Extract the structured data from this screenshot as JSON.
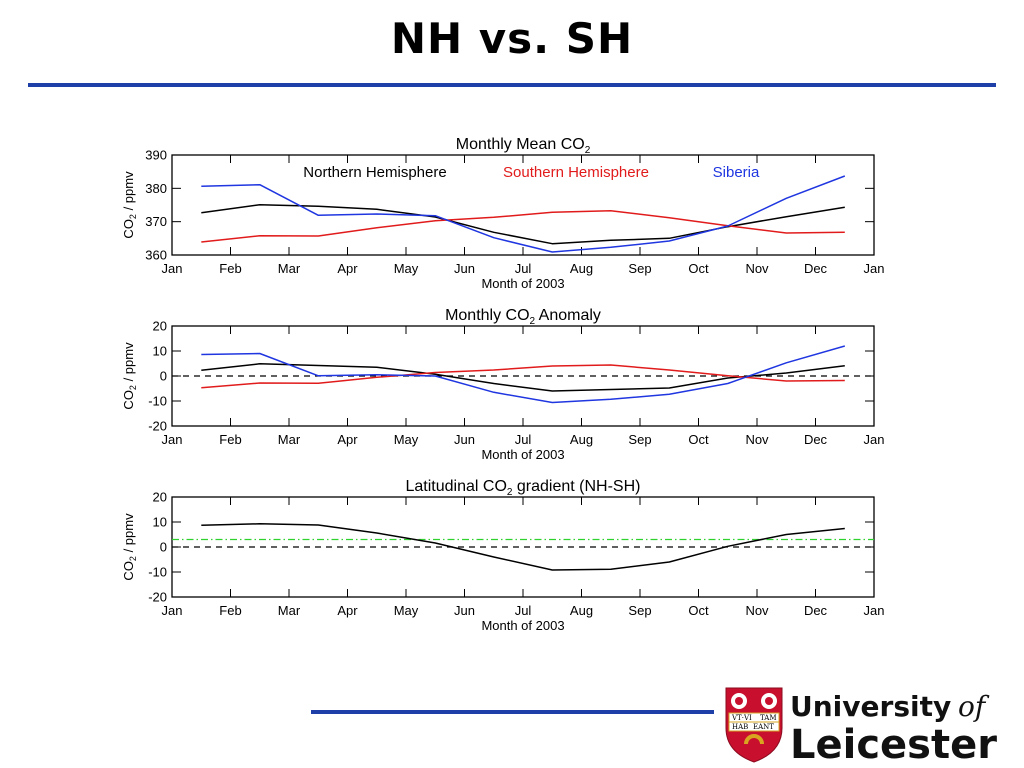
{
  "page": {
    "title": "NH vs. SH"
  },
  "colors": {
    "rule": "#1f3fa8",
    "nh": "#000000",
    "sh": "#e11b1b",
    "siberia": "#1f36e0",
    "reference": "#2ed12e",
    "shield": "#c8102e",
    "gold": "#d9a521"
  },
  "logo": {
    "line1": "University",
    "line1_suffix": "of",
    "line2": "Leicester",
    "motto_top": "VT·VI",
    "motto_top_right": "TAM",
    "motto_bottom": "HAB",
    "motto_bottom_right": "EANT"
  },
  "chart_data": [
    {
      "type": "line",
      "title_main": "Monthly Mean CO",
      "title_sub": "2",
      "title_suffix": "",
      "ylabel_main": "CO",
      "ylabel_sub": "2",
      "ylabel_suffix": " / ppmv",
      "xlabel": "Month of 2003",
      "ylim": [
        360,
        390
      ],
      "yticks": [
        360,
        370,
        380,
        390
      ],
      "xticks": [
        "Jan",
        "Feb",
        "Mar",
        "Apr",
        "May",
        "Jun",
        "Jul",
        "Aug",
        "Sep",
        "Oct",
        "Nov",
        "Dec",
        "Jan"
      ],
      "grid": false,
      "legend_placement": "top-inside",
      "x": [
        0.5,
        1.5,
        2.5,
        3.5,
        4.5,
        5.5,
        6.5,
        7.5,
        8.5,
        9.5,
        10.5,
        11.5
      ],
      "series": [
        {
          "name": "Northern Hemisphere",
          "color": "#000000",
          "values": [
            372.7,
            375.1,
            374.6,
            373.7,
            371.4,
            366.8,
            363.4,
            364.4,
            365.0,
            368.5,
            371.5,
            374.3
          ]
        },
        {
          "name": "Southern Hemisphere",
          "color": "#e11b1b",
          "values": [
            363.9,
            365.8,
            365.7,
            368.2,
            370.3,
            371.3,
            372.8,
            373.3,
            371.2,
            368.8,
            366.6,
            366.8
          ]
        },
        {
          "name": "Siberia",
          "color": "#1f36e0",
          "values": [
            380.6,
            381.1,
            371.9,
            372.3,
            371.8,
            365.2,
            360.9,
            362.3,
            364.2,
            368.7,
            377.0,
            383.7
          ]
        }
      ]
    },
    {
      "type": "line",
      "title_main": "Monthly CO",
      "title_sub": "2",
      "title_suffix": " Anomaly",
      "ylabel_main": "CO",
      "ylabel_sub": "2",
      "ylabel_suffix": " / ppmv",
      "xlabel": "Month of 2003",
      "ylim": [
        -20,
        20
      ],
      "yticks": [
        -20,
        -10,
        0,
        10,
        20
      ],
      "xticks": [
        "Jan",
        "Feb",
        "Mar",
        "Apr",
        "May",
        "Jun",
        "Jul",
        "Aug",
        "Sep",
        "Oct",
        "Nov",
        "Dec",
        "Jan"
      ],
      "grid": false,
      "reference_line": {
        "y": 0,
        "style": "dashed",
        "color": "#000000"
      },
      "x": [
        0.5,
        1.5,
        2.5,
        3.5,
        4.5,
        5.5,
        6.5,
        7.5,
        8.5,
        9.5,
        10.5,
        11.5
      ],
      "series": [
        {
          "color": "#000000",
          "values": [
            2.3,
            4.9,
            4.2,
            3.5,
            0.7,
            -3.0,
            -6.0,
            -5.4,
            -4.8,
            -0.8,
            1.2,
            4.1
          ]
        },
        {
          "color": "#e11b1b",
          "values": [
            -4.7,
            -2.8,
            -2.9,
            -0.5,
            1.4,
            2.4,
            4.0,
            4.4,
            2.4,
            0.1,
            -2.0,
            -1.8
          ]
        },
        {
          "color": "#1f36e0",
          "values": [
            8.6,
            9.0,
            0.1,
            0.5,
            0.0,
            -6.5,
            -10.6,
            -9.3,
            -7.3,
            -3.0,
            5.3,
            12.0
          ]
        }
      ]
    },
    {
      "type": "line",
      "title_main": "Latitudinal CO",
      "title_sub": "2",
      "title_suffix": " gradient (NH-SH)",
      "ylabel_main": "CO",
      "ylabel_sub": "2",
      "ylabel_suffix": " / ppmv",
      "xlabel": "Month of 2003",
      "ylim": [
        -20,
        20
      ],
      "yticks": [
        -20,
        -10,
        0,
        10,
        20
      ],
      "xticks": [
        "Jan",
        "Feb",
        "Mar",
        "Apr",
        "May",
        "Jun",
        "Jul",
        "Aug",
        "Sep",
        "Oct",
        "Nov",
        "Dec",
        "Jan"
      ],
      "grid": false,
      "reference_line": {
        "y": 0,
        "style": "dashed",
        "color": "#000000"
      },
      "mean_line": {
        "y": 3.0,
        "style": "dash-dot",
        "color": "#2ed12e"
      },
      "x": [
        0.5,
        1.5,
        2.5,
        3.5,
        4.5,
        5.5,
        6.5,
        7.5,
        8.5,
        9.5,
        10.5,
        11.5
      ],
      "series": [
        {
          "color": "#000000",
          "values": [
            8.7,
            9.3,
            8.8,
            5.6,
            1.6,
            -4.0,
            -9.2,
            -8.9,
            -6.0,
            0.3,
            5.0,
            7.4
          ]
        }
      ]
    }
  ]
}
